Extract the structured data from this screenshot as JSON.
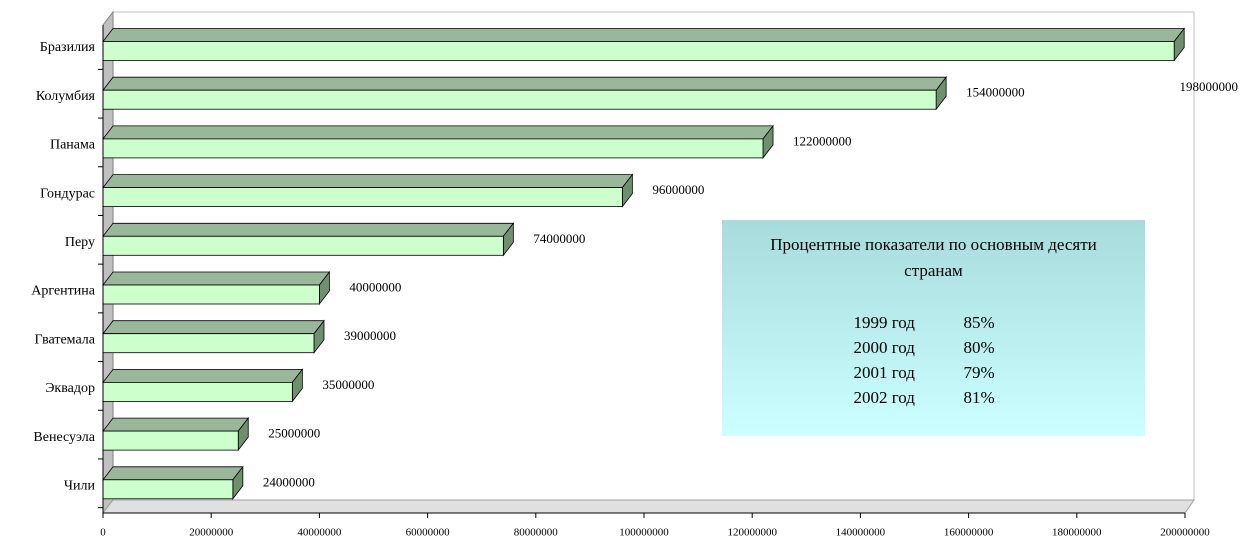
{
  "chart_data": {
    "type": "bar3d_horizontal",
    "categories": [
      "Бразилия",
      "Колумбия",
      "Панама",
      "Гондурас",
      "Перу",
      "Аргентина",
      "Гватемала",
      "Эквадор",
      "Венесуэла",
      "Чили"
    ],
    "values": [
      198000000,
      154000000,
      122000000,
      96000000,
      74000000,
      40000000,
      39000000,
      35000000,
      25000000,
      24000000
    ],
    "colors": {
      "front": "#ccffcc",
      "top": "#99b899",
      "side": "#6f8f6f"
    },
    "xlim": [
      0,
      200000000
    ],
    "xticks": [
      0,
      20000000,
      40000000,
      60000000,
      80000000,
      100000000,
      120000000,
      140000000,
      160000000,
      180000000,
      200000000
    ],
    "annotation": {
      "title": "Процентные показатели по основным десяти странам",
      "rows": [
        [
          "1999 год",
          "85%"
        ],
        [
          "2000 год",
          "80%"
        ],
        [
          "2001 год",
          "79%"
        ],
        [
          "2002 год",
          "81%"
        ]
      ]
    }
  }
}
